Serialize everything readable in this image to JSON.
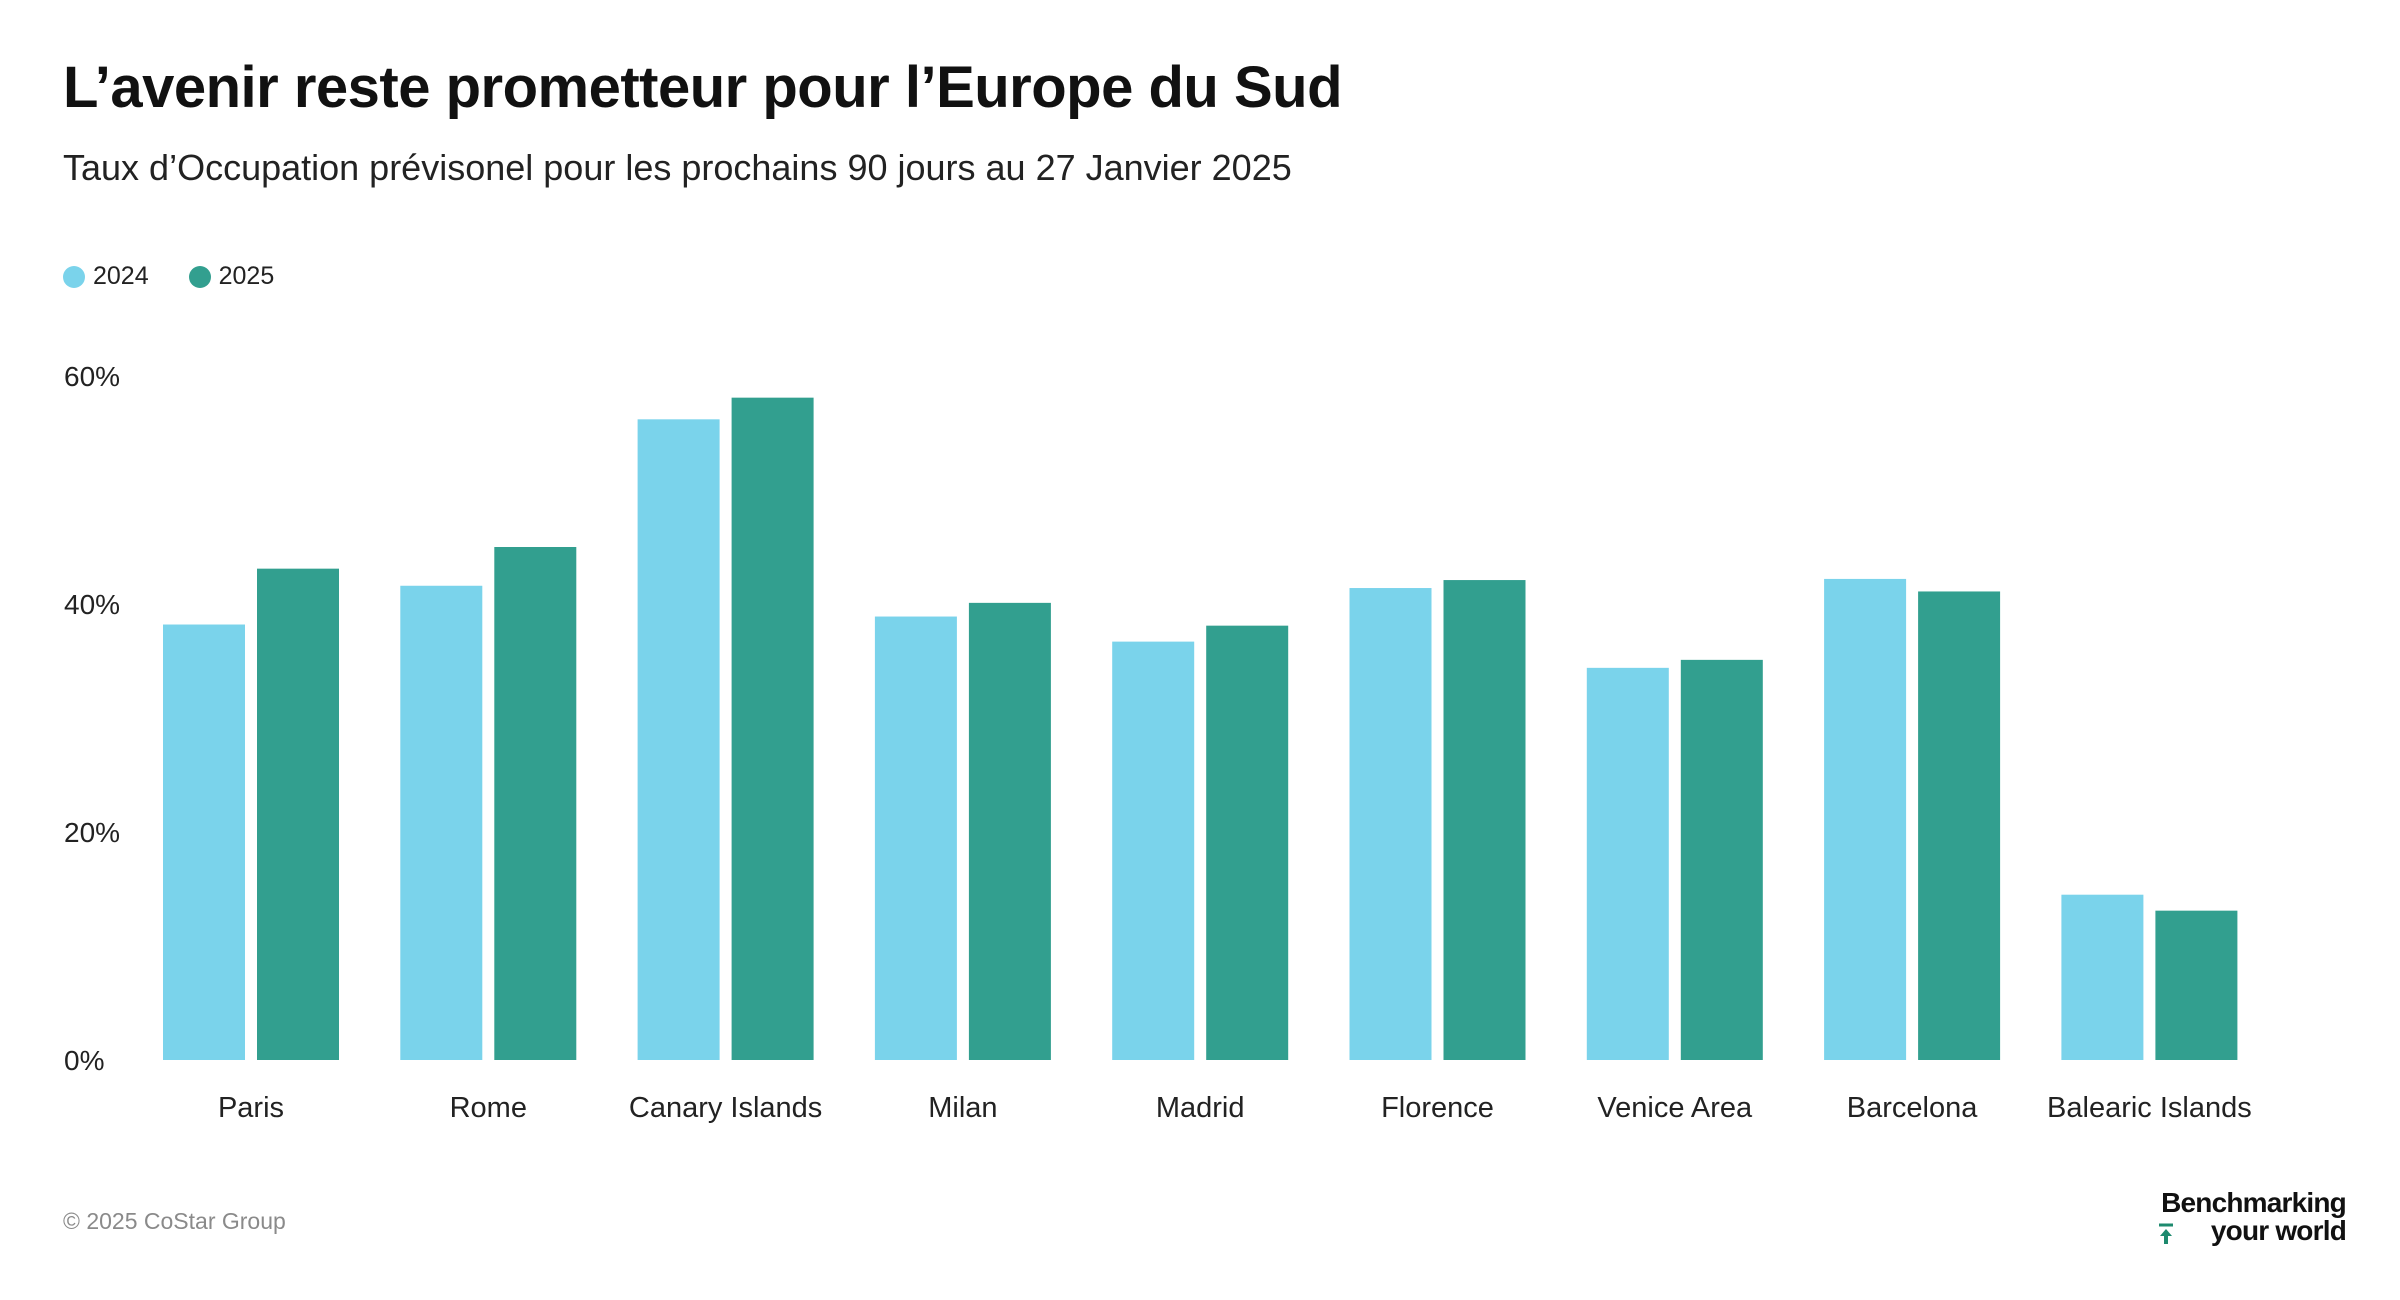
{
  "title": "L’avenir reste prometteur pour l’Europe du Sud",
  "subtitle": "Taux d’Occupation prévisonel pour les prochains 90 jours au 27 Janvier 2025",
  "footer": {
    "copyright": "© 2025 CoStar Group",
    "brand_line1": "Benchmarking",
    "brand_line2": "your world"
  },
  "colors": {
    "series_2024": "#7ad3eb",
    "series_2025": "#329f8f",
    "brand_accent": "#1d8a6e"
  },
  "chart_data": {
    "type": "bar",
    "title": "L’avenir reste prometteur pour l’Europe du Sud",
    "subtitle": "Taux d’Occupation prévisonel pour les prochains 90 jours au 27 Janvier 2025",
    "categories": [
      "Paris",
      "Rome",
      "Canary Islands",
      "Milan",
      "Madrid",
      "Florence",
      "Venice Area",
      "Barcelona",
      "Balearic Islands"
    ],
    "series": [
      {
        "name": "2024",
        "values": [
          38.2,
          41.6,
          56.2,
          38.9,
          36.7,
          41.4,
          34.4,
          42.2,
          14.5
        ]
      },
      {
        "name": "2025",
        "values": [
          43.1,
          45.0,
          58.1,
          40.1,
          38.1,
          42.1,
          35.1,
          41.1,
          13.1
        ]
      }
    ],
    "yticks": [
      "0%",
      "20%",
      "40%",
      "60%"
    ],
    "ytick_values": [
      0,
      20,
      40,
      60
    ],
    "ylim": [
      0,
      60
    ],
    "grid": false,
    "legend": "top-left",
    "xlabel": "",
    "ylabel": ""
  }
}
